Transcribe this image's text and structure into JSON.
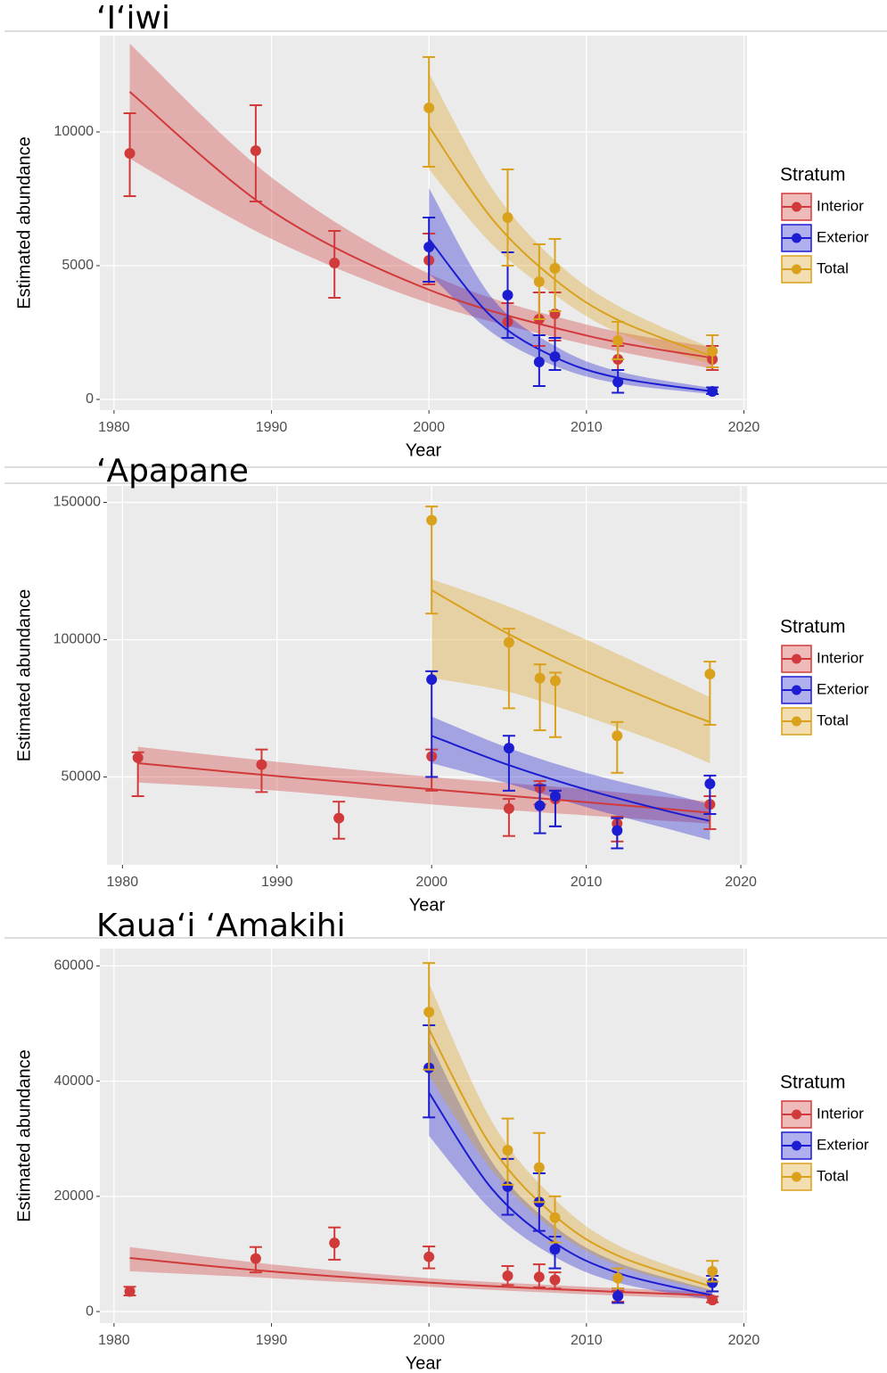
{
  "chart_data": [
    {
      "type": "scatter",
      "title": "‘I‘iwi",
      "x_label": "Year",
      "y_label": "Estimated abundance",
      "legend_title": "Stratum",
      "legend": "right",
      "grid": true,
      "xlim": [
        1979.1,
        2020.2
      ],
      "xticks": [
        1980,
        1990,
        2000,
        2010,
        2020
      ],
      "ylim": [
        -400,
        13600
      ],
      "yticks": [
        0,
        5000,
        10000
      ],
      "series": [
        {
          "name": "Interior",
          "color": "#d13a3a",
          "x": [
            1981,
            1989,
            1994,
            2000,
            2005,
            2007,
            2008,
            2012,
            2018
          ],
          "values": [
            9200,
            9300,
            5100,
            5200,
            2900,
            3000,
            3200,
            1500,
            1500
          ],
          "lower": [
            7600,
            7400,
            3800,
            4300,
            2300,
            2000,
            2200,
            1100,
            1100
          ],
          "upper": [
            10700,
            11000,
            6300,
            6200,
            3600,
            4000,
            4000,
            2000,
            2000
          ],
          "fit": {
            "x": [
              1981,
              1990,
              2000,
              2010,
              2018
            ],
            "values": [
              11500,
              7050,
              4100,
              2390,
              1550
            ],
            "lower": [
              9000,
              6000,
              3600,
              2050,
              1150
            ],
            "upper": [
              13300,
              8300,
              4700,
              2800,
              1950
            ]
          }
        },
        {
          "name": "Exterior",
          "color": "#1c1cd0",
          "x": [
            2000,
            2005,
            2007,
            2008,
            2012,
            2018
          ],
          "values": [
            5700,
            3900,
            1400,
            1600,
            650,
            300
          ],
          "lower": [
            4400,
            2300,
            500,
            1100,
            250,
            200
          ],
          "upper": [
            6800,
            5500,
            2400,
            2300,
            1100,
            450
          ],
          "fit": {
            "x": [
              2000,
              2004,
              2008,
              2012,
              2018
            ],
            "values": [
              6000,
              3080,
              1580,
              810,
              300
            ],
            "lower": [
              4700,
              2500,
              1250,
              600,
              200
            ],
            "upper": [
              7900,
              3800,
              2000,
              1050,
              420
            ]
          }
        },
        {
          "name": "Total",
          "color": "#d9a11c",
          "x": [
            2000,
            2005,
            2007,
            2008,
            2012,
            2018
          ],
          "values": [
            10900,
            6800,
            4400,
            4900,
            2200,
            1800
          ],
          "lower": [
            8700,
            5000,
            3000,
            3300,
            1500,
            1200
          ],
          "upper": [
            12800,
            8600,
            5800,
            6000,
            2900,
            2400
          ],
          "fit": {
            "x": [
              2000,
              2004,
              2008,
              2012,
              2018
            ],
            "values": [
              10200,
              6760,
              4480,
              2970,
              1600
            ],
            "lower": [
              8600,
              5800,
              3900,
              2500,
              1300
            ],
            "upper": [
              12200,
              7900,
              5200,
              3500,
              1900
            ]
          }
        }
      ]
    },
    {
      "type": "scatter",
      "title": "‘Apapane",
      "x_label": "Year",
      "y_label": "Estimated abundance",
      "legend_title": "Stratum",
      "legend": "right",
      "grid": true,
      "xlim": [
        1979,
        2020.4
      ],
      "xticks": [
        1980,
        1990,
        2000,
        2010,
        2020
      ],
      "ylim": [
        18000,
        156000
      ],
      "yticks": [
        50000,
        100000,
        150000
      ],
      "series": [
        {
          "name": "Interior",
          "color": "#d13a3a",
          "x": [
            1981,
            1989,
            1994,
            2000,
            2005,
            2007,
            2008,
            2012,
            2018
          ],
          "values": [
            57000,
            54500,
            35000,
            57500,
            38500,
            46000,
            42000,
            33000,
            40000
          ],
          "lower": [
            43000,
            44500,
            27500,
            45000,
            28500,
            40000,
            32000,
            26500,
            31000
          ],
          "upper": [
            59000,
            60000,
            41000,
            60000,
            42000,
            48500,
            45000,
            35500,
            43000
          ],
          "fit": {
            "x": [
              1981,
              1990,
              2000,
              2010,
              2018
            ],
            "values": [
              55000,
              50300,
              45500,
              40800,
              37000
            ],
            "lower": [
              48000,
              45000,
              40000,
              36000,
              33000
            ],
            "upper": [
              61000,
              55500,
              50000,
              45500,
              41000
            ]
          }
        },
        {
          "name": "Exterior",
          "color": "#1c1cd0",
          "x": [
            2000,
            2005,
            2007,
            2008,
            2012,
            2018
          ],
          "values": [
            85500,
            60500,
            39500,
            43000,
            30500,
            47500
          ],
          "lower": [
            50000,
            45000,
            29500,
            32000,
            24000,
            36500
          ],
          "upper": [
            88500,
            65000,
            47000,
            45000,
            35000,
            50500
          ],
          "fit": {
            "x": [
              2000,
              2005,
              2010,
              2015,
              2018
            ],
            "values": [
              65000,
              54300,
              45400,
              37900,
              34000
            ],
            "lower": [
              55000,
              47500,
              39000,
              31500,
              27000
            ],
            "upper": [
              72000,
              60500,
              51500,
              44500,
              40000
            ]
          }
        },
        {
          "name": "Total",
          "color": "#d9a11c",
          "x": [
            2000,
            2005,
            2007,
            2008,
            2012,
            2018
          ],
          "values": [
            143500,
            99000,
            86000,
            85000,
            65000,
            87500
          ],
          "lower": [
            109500,
            75000,
            67000,
            64500,
            51500,
            69000
          ],
          "upper": [
            148500,
            104000,
            91000,
            88000,
            70000,
            92000
          ],
          "fit": {
            "x": [
              2000,
              2005,
              2010,
              2015,
              2018
            ],
            "values": [
              118000,
              102000,
              88300,
              76400,
              70000
            ],
            "lower": [
              86000,
              81000,
              72000,
              62000,
              55000
            ],
            "upper": [
              122000,
              112000,
              100000,
              87000,
              79000
            ]
          }
        }
      ]
    },
    {
      "type": "scatter",
      "title": "Kaua‘i ‘Amakihi",
      "x_label": "Year",
      "y_label": "Estimated abundance",
      "legend_title": "Stratum",
      "legend": "right",
      "grid": true,
      "xlim": [
        1979.1,
        2020.2
      ],
      "xticks": [
        1980,
        1990,
        2000,
        2010,
        2020
      ],
      "ylim": [
        -2000,
        63000
      ],
      "yticks": [
        0,
        20000,
        40000,
        60000
      ],
      "series": [
        {
          "name": "Interior",
          "color": "#d13a3a",
          "x": [
            1981,
            1989,
            1994,
            2000,
            2005,
            2007,
            2008,
            2012,
            2018
          ],
          "values": [
            3500,
            9200,
            11900,
            9500,
            6200,
            6000,
            5500,
            2700,
            2000
          ],
          "lower": [
            2800,
            6800,
            9000,
            7500,
            4600,
            4200,
            4000,
            1700,
            1600
          ],
          "upper": [
            4300,
            11200,
            14600,
            11300,
            7900,
            8200,
            6800,
            3600,
            2600
          ],
          "fit": {
            "x": [
              1981,
              1990,
              2000,
              2010,
              2018
            ],
            "values": [
              9300,
              6950,
              5020,
              3640,
              2800
            ],
            "lower": [
              7000,
              5800,
              4300,
              3000,
              2200
            ],
            "upper": [
              11200,
              8200,
              5800,
              4300,
              3400
            ]
          }
        },
        {
          "name": "Exterior",
          "color": "#1c1cd0",
          "x": [
            2000,
            2005,
            2007,
            2008,
            2012,
            2018
          ],
          "values": [
            42300,
            21700,
            19000,
            10800,
            2700,
            5000
          ],
          "lower": [
            33700,
            16800,
            14000,
            7500,
            1500,
            3500
          ],
          "upper": [
            49700,
            26500,
            24000,
            13000,
            4000,
            6200
          ],
          "fit": {
            "x": [
              2000,
              2004,
              2008,
              2012,
              2018
            ],
            "values": [
              38000,
              21300,
              11900,
              6680,
              2800
            ],
            "lower": [
              30500,
              17500,
              9500,
              5000,
              2000
            ],
            "upper": [
              47000,
              26000,
              14800,
              8500,
              3700
            ]
          }
        },
        {
          "name": "Total",
          "color": "#d9a11c",
          "x": [
            2000,
            2005,
            2007,
            2008,
            2012,
            2018
          ],
          "values": [
            52000,
            28000,
            25000,
            16300,
            5800,
            7000
          ],
          "lower": [
            42000,
            22000,
            19000,
            12000,
            4000,
            5200
          ],
          "upper": [
            60500,
            33500,
            31000,
            20000,
            7500,
            8800
          ],
          "fit": {
            "x": [
              2000,
              2004,
              2008,
              2012,
              2018
            ],
            "values": [
              49000,
              28500,
              16600,
              9700,
              4300
            ],
            "lower": [
              41000,
              24500,
              14000,
              8000,
              3400
            ],
            "upper": [
              57000,
              33000,
              19500,
              11500,
              5400
            ]
          }
        }
      ]
    }
  ]
}
